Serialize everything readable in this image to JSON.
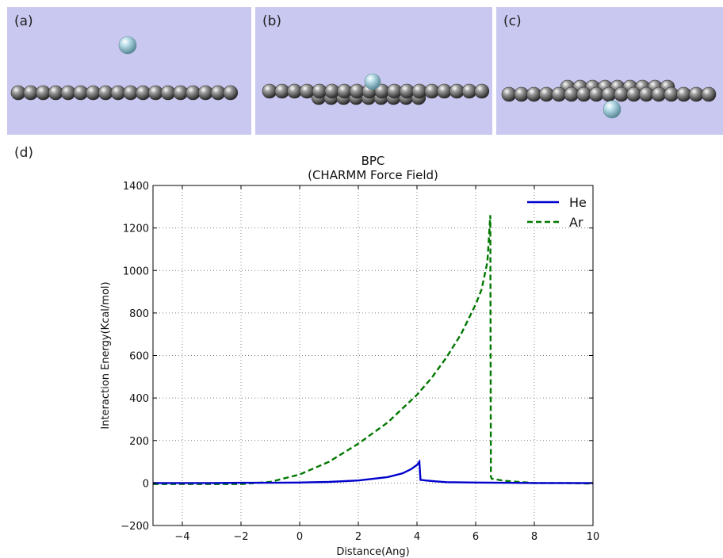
{
  "panels": {
    "a": {
      "label": "(a)"
    },
    "b": {
      "label": "(b)"
    },
    "c": {
      "label": "(c)"
    },
    "d": {
      "label": "(d)"
    }
  },
  "colors": {
    "panel_bg": "#c8c8f0",
    "he": "#0000cc",
    "ar": "#007700"
  },
  "chart_data": {
    "type": "line",
    "title": "BPC",
    "subtitle": "(CHARMM Force Field)",
    "xlabel": "Distance(Ang)",
    "ylabel": "Interaction Energy(Kcal/mol)",
    "xlim": [
      -5,
      10
    ],
    "ylim": [
      -200,
      1400
    ],
    "xticks": [
      -4,
      -2,
      0,
      2,
      4,
      6,
      8,
      10
    ],
    "yticks": [
      -200,
      0,
      200,
      400,
      600,
      800,
      1000,
      1200,
      1400
    ],
    "grid": true,
    "legend_position": "top-right",
    "series": [
      {
        "name": "He",
        "style": "solid",
        "x": [
          -5,
          -3,
          -2,
          -1,
          0,
          1,
          2,
          3,
          3.5,
          3.8,
          4.0,
          4.08,
          4.12,
          4.3,
          4.6,
          5,
          6,
          7,
          8,
          9,
          10
        ],
        "y": [
          0,
          0,
          1,
          1,
          2,
          5,
          12,
          28,
          45,
          65,
          85,
          100,
          15,
          12,
          8,
          4,
          2,
          1,
          0,
          0,
          0
        ]
      },
      {
        "name": "Ar",
        "style": "dashed",
        "x": [
          -5,
          -2,
          -1,
          0,
          1,
          2,
          3,
          4,
          4.5,
          5,
          5.5,
          6,
          6.2,
          6.4,
          6.5,
          6.52,
          6.55,
          7,
          8,
          9,
          10
        ],
        "y": [
          -5,
          -5,
          5,
          40,
          100,
          185,
          285,
          415,
          495,
          590,
          700,
          840,
          910,
          1040,
          1260,
          30,
          20,
          10,
          0,
          0,
          -3
        ]
      }
    ]
  }
}
